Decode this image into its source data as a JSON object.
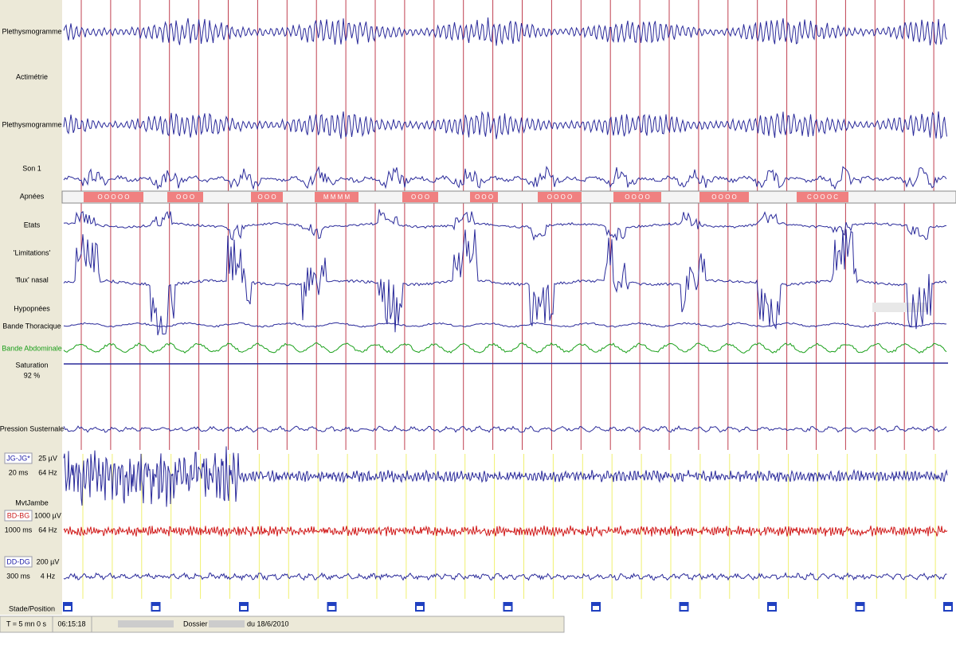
{
  "channels": {
    "pleth1": "Plethysmogramme",
    "actimetrie": "Actimétrie",
    "pleth2": "Plethysmogramme",
    "son": "Son 1",
    "apnees": "Apnées",
    "etats": "Etats",
    "limitations": "'Limitations'",
    "flux": "'flux' nasal",
    "hypopnees": "Hypopnées",
    "thoracique": "Bande Thoracique",
    "abdominale": "Bande Abdominale",
    "saturation": "Saturation",
    "saturation_value": "92 %",
    "pression": "Pression Susternale",
    "jg": {
      "name": "JG-JG*",
      "gain": "25 µV",
      "time": "20 ms",
      "freq": "64 Hz"
    },
    "mvt": "MvtJambe",
    "bd": {
      "name": "BD-BG",
      "gain": "1000 µV",
      "time": "1000 ms",
      "freq": "64 Hz"
    },
    "dd": {
      "name": "DD-DG",
      "gain": "200 µV",
      "time": "300 ms",
      "freq": "4 Hz"
    },
    "stade": "Stade/Position"
  },
  "apnea_events": [
    "O O O O O",
    "O O O",
    "O O O",
    "M M M M",
    "O O O",
    "O O O",
    "O O O O",
    "O O O O",
    "O O O O",
    "C O O O C"
  ],
  "status": {
    "window": "T = 5 mn 0 s",
    "time": "06:15:18",
    "dossier": "Dossier :",
    "date": "du 18/6/2010"
  }
}
